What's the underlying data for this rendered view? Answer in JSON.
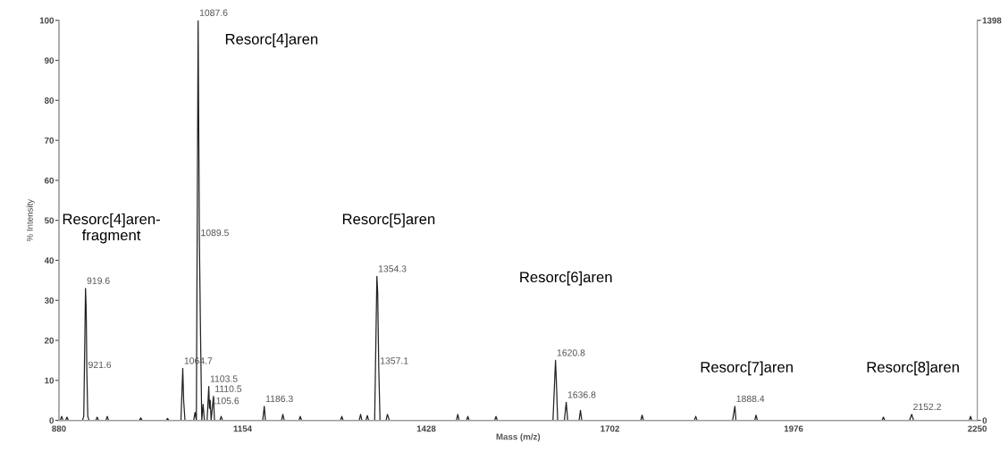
{
  "chart_data": {
    "type": "line",
    "xlabel": "Mass (m/z)",
    "ylabel": "% Intensity",
    "xlim": [
      880,
      2250
    ],
    "xticks": [
      880,
      1154,
      1428,
      1702,
      1976,
      2250
    ],
    "ylim": [
      0,
      100
    ],
    "yticks": [
      0,
      10,
      20,
      30,
      40,
      50,
      60,
      70,
      80,
      90,
      100
    ],
    "y2lim": [
      0,
      1398
    ],
    "y2ticks": [
      0,
      1398
    ],
    "grid": false,
    "legend": false,
    "series": [
      {
        "color": "#222222",
        "x": [
          882,
          884,
          886,
          890,
          892,
          894,
          915,
          917,
          919.6,
          920.6,
          921.6,
          923,
          925,
          935,
          937,
          939,
          950,
          952,
          954,
          1000,
          1002,
          1004,
          1040,
          1042,
          1044,
          1062,
          1064.7,
          1066,
          1068,
          1081,
          1083,
          1085,
          1087.6,
          1089.5,
          1091,
          1093,
          1095,
          1097,
          1101,
          1103.5,
          1104.5,
          1105.6,
          1107,
          1110.5,
          1112,
          1120,
          1122,
          1124,
          1184,
          1186.3,
          1188,
          1212,
          1214,
          1216,
          1238,
          1240,
          1242,
          1300,
          1302,
          1304,
          1328,
          1330,
          1332,
          1338,
          1340,
          1342,
          1351,
          1354.3,
          1355.5,
          1357.1,
          1359,
          1368,
          1370,
          1373,
          1473,
          1475,
          1477,
          1488,
          1490,
          1492,
          1530,
          1532,
          1534,
          1617,
          1620.8,
          1622,
          1624,
          1634,
          1636.8,
          1639,
          1656,
          1658,
          1660,
          1748,
          1750,
          1752,
          1828,
          1830,
          1832,
          1885,
          1888.4,
          1890,
          1918,
          1920,
          1922,
          2108,
          2110,
          2112,
          2149,
          2152.2,
          2155,
          2238,
          2240,
          2242
        ],
        "values": [
          0,
          1,
          0,
          0,
          0.8,
          0,
          0,
          1,
          33,
          28,
          12,
          1,
          0,
          0,
          0.8,
          0,
          0,
          1,
          0,
          0,
          0.6,
          0,
          0,
          0.5,
          0,
          0,
          13,
          5,
          0,
          0,
          2,
          0,
          100,
          45,
          24,
          0,
          4,
          0,
          0,
          8.5,
          3,
          5,
          0,
          6,
          0,
          0,
          1,
          0,
          0,
          3.5,
          0,
          0,
          1.5,
          0,
          0,
          1,
          0,
          0,
          1,
          0,
          0,
          1.5,
          0,
          0,
          1.2,
          0,
          0,
          36,
          32,
          13,
          0,
          0,
          1.5,
          0,
          0,
          1.5,
          0,
          0,
          1,
          0,
          0,
          1,
          0,
          0,
          15,
          10,
          0,
          0,
          4.5,
          0,
          0,
          2.5,
          0,
          0,
          1.3,
          0,
          0,
          1,
          0,
          0,
          3.5,
          0,
          0,
          1.3,
          0,
          0,
          0.8,
          0,
          0,
          1.5,
          0,
          0,
          1,
          0
        ]
      }
    ],
    "annotations": [
      {
        "text": "919.6",
        "x": 919.6,
        "y": 33
      },
      {
        "text": "921.6",
        "x": 921.6,
        "y": 12
      },
      {
        "text": "1064.7",
        "x": 1064.7,
        "y": 13
      },
      {
        "text": "1087.6",
        "x": 1087.6,
        "y": 100
      },
      {
        "text": "1089.5",
        "x": 1089.5,
        "y": 45
      },
      {
        "text": "1103.5",
        "x": 1103.5,
        "y": 8.5
      },
      {
        "text": "1110.5",
        "x": 1110.5,
        "y": 6
      },
      {
        "text": "1105.6",
        "x": 1105.6,
        "y": 3
      },
      {
        "text": "1186.3",
        "x": 1186.3,
        "y": 3.5
      },
      {
        "text": "1354.3",
        "x": 1354.3,
        "y": 36
      },
      {
        "text": "1357.1",
        "x": 1357.1,
        "y": 13
      },
      {
        "text": "1620.8",
        "x": 1620.8,
        "y": 15
      },
      {
        "text": "1636.8",
        "x": 1636.8,
        "y": 4.5
      },
      {
        "text": "1888.4",
        "x": 1888.4,
        "y": 3.5
      },
      {
        "text": "2152.2",
        "x": 2152.2,
        "y": 1.5
      },
      "Resorc[4]aren",
      "Resorc[4]aren-\nfragment",
      "Resorc[5]aren",
      "Resorc[6]aren",
      "Resorc[7]aren",
      "Resorc[8]aren"
    ]
  }
}
